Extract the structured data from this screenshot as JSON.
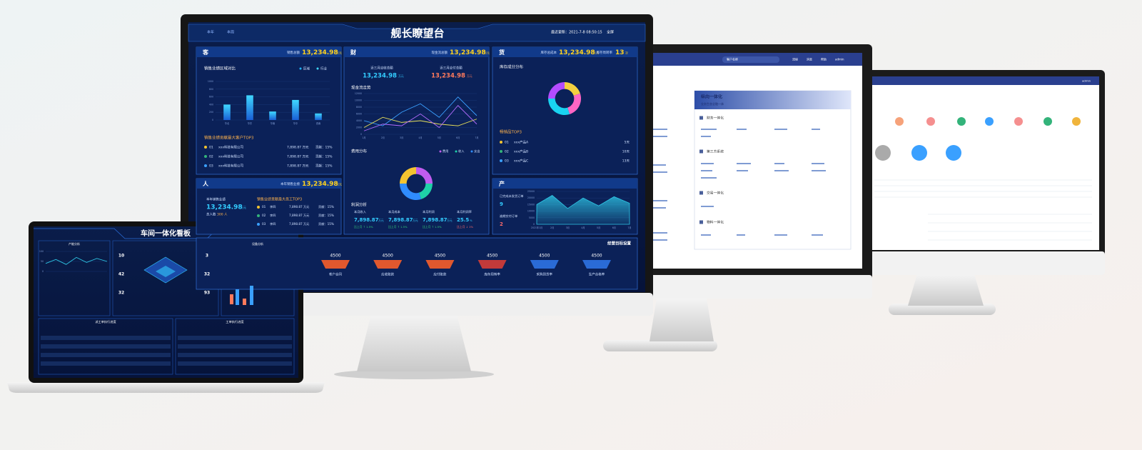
{
  "main_screen": {
    "title": "舰长瞭望台",
    "tabs": [
      "本年",
      "本周"
    ],
    "updated": "最近更新：2021-7-8 08:50:15",
    "fullscreen": "全屏",
    "customer": {
      "label": "客",
      "kpi_label": "销售总额",
      "kpi_value": "13,234.98",
      "kpi_unit": "万元",
      "chart": {
        "type": "bar",
        "title": "销售业绩区域对比",
        "legend": [
          "区域",
          "行业"
        ],
        "categories": [
          "华北",
          "华东",
          "华南",
          "华中",
          "西南"
        ],
        "values": [
          400,
          640,
          220,
          520,
          170
        ],
        "color": "#1fb6ff",
        "ylim": [
          0,
          1000
        ],
        "yticks": [
          0,
          200,
          400,
          600,
          800,
          1000
        ]
      },
      "top_title": "销售业绩贡献最大客户TOP3",
      "top": [
        [
          "01",
          "xxx科技有限公司",
          "7,898.87 万元",
          "贡献：15%"
        ],
        [
          "02",
          "xxx科技有限公司",
          "7,898.87 万元",
          "贡献：15%"
        ],
        [
          "03",
          "xxx科技有限公司",
          "7,898.87 万元",
          "贡献：15%"
        ]
      ]
    },
    "finance": {
      "label": "财",
      "kpi_label": "现金流总额",
      "kpi_value": "13,234.98",
      "kpi_unit": "万元",
      "receivable_label": "近三月应收总额",
      "receivable_value": "13,234.98",
      "receivable_unit": "万元",
      "payable_label": "近三月应付总额",
      "payable_value": "13,234.98",
      "payable_unit": "万元",
      "cash_chart": {
        "type": "line",
        "title": "现金流走势",
        "categories": [
          "1月",
          "2月",
          "3月",
          "4月",
          "5月",
          "6月",
          "7月"
        ],
        "series": [
          {
            "color": "#3aa0ff",
            "values": [
              4000,
              2500,
              6500,
              9000,
              5000,
              11000,
              5500
            ]
          },
          {
            "color": "#e8e05a",
            "values": [
              2000,
              5000,
              3500,
              4000,
              3000,
              2500,
              4500
            ]
          },
          {
            "color": "#b46cff",
            "values": [
              1000,
              3000,
              2500,
              6000,
              2000,
              8500,
              3000
            ]
          }
        ],
        "ylim": [
          0,
          12000
        ],
        "yticks": [
          0,
          2000,
          4000,
          6000,
          8000,
          10000,
          12000
        ]
      },
      "expense_chart": {
        "type": "pie",
        "title": "费用分布",
        "legend": [
          "费用",
          "收入",
          "支出"
        ],
        "values": [
          25,
          20,
          30,
          25
        ],
        "colors": [
          "#c05cf0",
          "#1fd1a8",
          "#2f8cff",
          "#f4c430"
        ]
      },
      "profit": {
        "title": "利润分析",
        "items": [
          {
            "label": "本月收入",
            "value": "7,898.87",
            "unit": "万元",
            "change": "比上月 ↑ 1.5%"
          },
          {
            "label": "本月成本",
            "value": "7,898.87",
            "unit": "万元",
            "change": "比上月 ↑ 1.5%"
          },
          {
            "label": "本月利润",
            "value": "7,898.87",
            "unit": "万元",
            "change": "比上月 ↑ 1.5%"
          },
          {
            "label": "本月利润率",
            "value": "25.5",
            "unit": "%",
            "change": "比上月 ↓ 1%"
          }
        ]
      }
    },
    "goods": {
      "label": "货",
      "kpi_label": "库存总成本",
      "kpi_value": "13,234.98",
      "kpi_unit": "万元",
      "kpi2_label": "库存周转率",
      "kpi2_value": "13",
      "kpi2_unit": "次",
      "stock_chart": {
        "type": "pie",
        "title": "库存成分分布",
        "values": [
          20,
          25,
          30,
          25
        ],
        "colors": [
          "#f4d03f",
          "#ff66c4",
          "#19d3f0",
          "#b44cff"
        ]
      },
      "top_title": "畅销品TOP3",
      "top": [
        [
          "01",
          "xxx产品A",
          "5天"
        ],
        [
          "02",
          "xxx产品B",
          "10天"
        ],
        [
          "03",
          "xxx产品C",
          "13天"
        ]
      ]
    },
    "people": {
      "label": "人",
      "kpi_label": "本年销售业绩",
      "kpi_value": "13,234.98",
      "kpi_unit": "万元",
      "sub_label": "本年销售业绩",
      "sub_value": "13,234.98",
      "sub_unit": "万元",
      "count_label": "总人数",
      "count_value": "300",
      "count_unit": "人",
      "top_title": "销售业绩贡献最大员工TOP3",
      "top": [
        [
          "01",
          "李四",
          "7,898.87 万元",
          "贡献：15%"
        ],
        [
          "02",
          "李四",
          "7,898.87 万元",
          "贡献：15%"
        ],
        [
          "03",
          "李四",
          "7,898.87 万元",
          "贡献：15%"
        ]
      ]
    },
    "production": {
      "label": "产",
      "orders_label": "已完成未发货订单",
      "orders_value": "9",
      "overdue_label": "逾期交付订单",
      "overdue_value": "2",
      "chart": {
        "type": "area",
        "categories": [
          "2021年1月",
          "2月",
          "3月",
          "4月",
          "5月",
          "6月",
          "7月"
        ],
        "values": [
          15000,
          22000,
          12000,
          20000,
          14000,
          21000,
          16000
        ],
        "color": "#2ec7e6",
        "ylim": [
          0,
          25000
        ],
        "yticks": [
          0,
          5000,
          10000,
          15000,
          20000,
          25000
        ]
      }
    },
    "goals": {
      "title": "经营目标设置",
      "items": [
        {
          "value": 4500,
          "label": "客户合同"
        },
        {
          "value": 4500,
          "label": "应收账款"
        },
        {
          "value": 4500,
          "label": "应付账款"
        },
        {
          "value": 4500,
          "label": "库存周转率"
        },
        {
          "value": 4500,
          "label": "采购到货率"
        },
        {
          "value": 4500,
          "label": "生产合格率"
        }
      ]
    }
  },
  "laptop": {
    "title": "车间一体化看板",
    "panels": [
      "产能分析",
      "设备分析"
    ],
    "capacity_chart": {
      "type": "line",
      "values": [
        40,
        60,
        35,
        70,
        45,
        65,
        50
      ],
      "color": "#2ec7e6",
      "ylim": [
        0,
        100
      ],
      "yticks": [
        0,
        50,
        100
      ]
    },
    "stats": [
      "10",
      "42",
      "32",
      "3",
      "32",
      "93"
    ],
    "tables": [
      "派工单执行进度",
      "工单执行进度"
    ]
  },
  "monitor2": {
    "search": "客户名称",
    "nav": [
      "流程",
      "消息",
      "帮助",
      "admin"
    ],
    "card_title": "纵向一体化",
    "card_subtitle": "业务生态全融一体",
    "sections": [
      "财务一体化",
      "第三方系统",
      "交易一体化",
      "物料一体化"
    ]
  },
  "monitor3": {
    "user": "admin"
  }
}
